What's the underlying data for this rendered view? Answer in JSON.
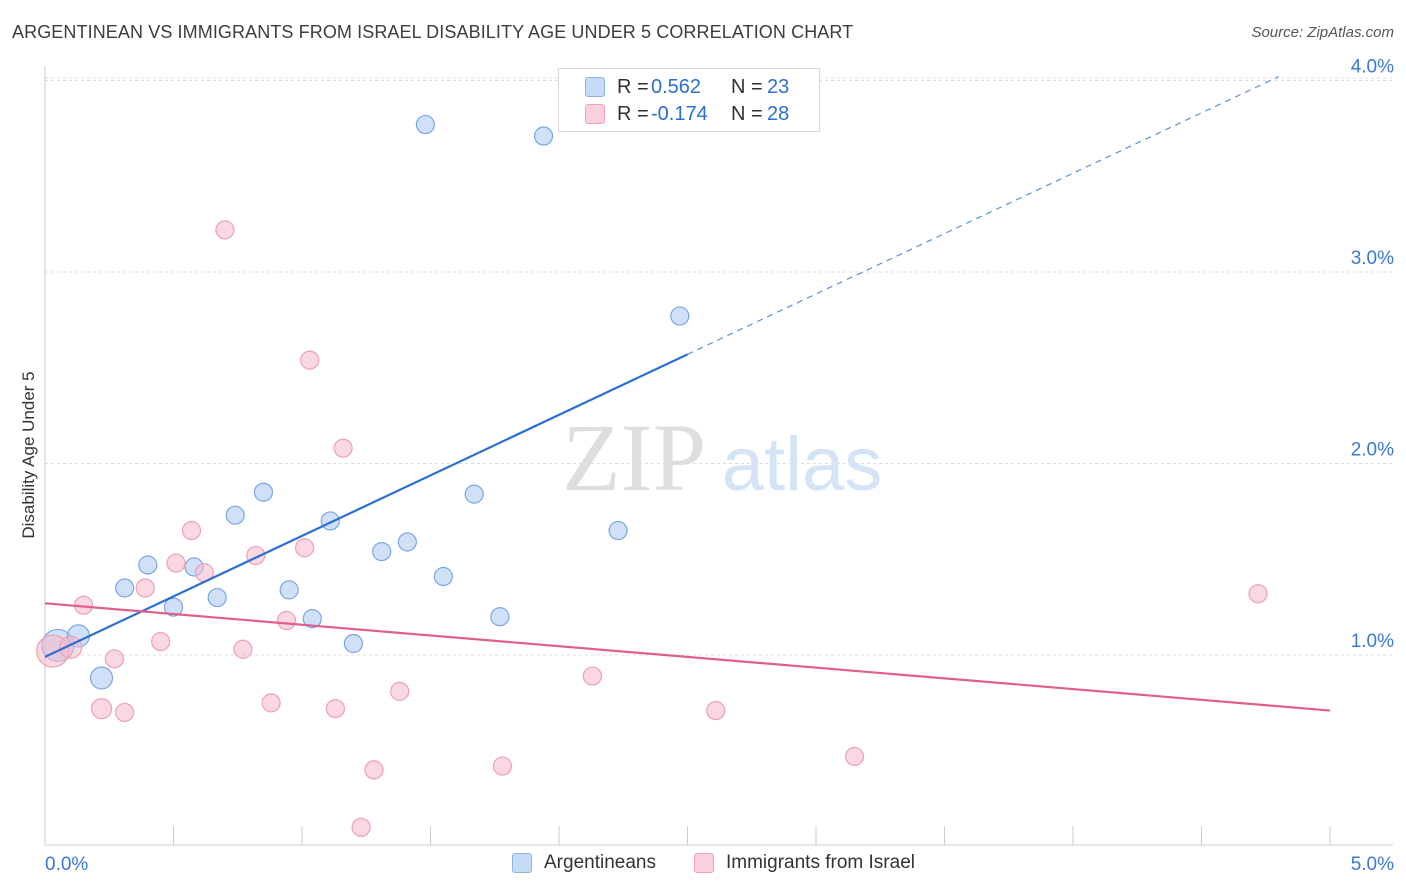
{
  "header": {
    "title": "ARGENTINEAN VS IMMIGRANTS FROM ISRAEL DISABILITY AGE UNDER 5 CORRELATION CHART",
    "source": "Source: ZipAtlas.com"
  },
  "watermark": {
    "zip": "ZIP",
    "atlas": "atlas"
  },
  "legend": {
    "rows": [
      {
        "r_label": "R = ",
        "r_value": "0.562",
        "n_label": "N = ",
        "n_value": "23",
        "color": "#aac8f0"
      },
      {
        "r_label": "R = ",
        "r_value": "-0.174",
        "n_label": "N = ",
        "n_value": "28",
        "color": "#f5b8c9"
      }
    ]
  },
  "bottom_legend": {
    "items": [
      {
        "label": "Argentineans",
        "color": "#aac8f0"
      },
      {
        "label": "Immigrants from Israel",
        "color": "#f5b8c9"
      }
    ]
  },
  "chart_data": {
    "type": "scatter",
    "title": "ARGENTINEAN VS IMMIGRANTS FROM ISRAEL DISABILITY AGE UNDER 5 CORRELATION CHART",
    "xlabel": "",
    "ylabel": "Disability Age Under 5",
    "xlim": [
      0,
      5.0
    ],
    "ylim": [
      0,
      4.0
    ],
    "x_tick_labels": [
      "0.0%",
      "5.0%"
    ],
    "y_tick_values": [
      1.0,
      2.0,
      3.0,
      4.0
    ],
    "y_tick_labels": [
      "1.0%",
      "2.0%",
      "3.0%",
      "4.0%"
    ],
    "grid": "horizontal dashed",
    "legend_position": "top-center",
    "series": [
      {
        "name": "Argentineans",
        "color": "#2c6fd1",
        "fill": "#aac8f0",
        "points": [
          {
            "x": 0.05,
            "y": 1.05,
            "s": 16
          },
          {
            "x": 0.13,
            "y": 1.1,
            "s": 11
          },
          {
            "x": 0.22,
            "y": 0.88,
            "s": 11
          },
          {
            "x": 0.31,
            "y": 1.35,
            "s": 9
          },
          {
            "x": 0.4,
            "y": 1.47,
            "s": 9
          },
          {
            "x": 0.5,
            "y": 1.25,
            "s": 9
          },
          {
            "x": 0.58,
            "y": 1.46,
            "s": 9
          },
          {
            "x": 0.67,
            "y": 1.3,
            "s": 9
          },
          {
            "x": 0.74,
            "y": 1.73,
            "s": 9
          },
          {
            "x": 0.85,
            "y": 1.85,
            "s": 9
          },
          {
            "x": 0.95,
            "y": 1.34,
            "s": 9
          },
          {
            "x": 1.04,
            "y": 1.19,
            "s": 9
          },
          {
            "x": 1.11,
            "y": 1.7,
            "s": 9
          },
          {
            "x": 1.2,
            "y": 1.06,
            "s": 9
          },
          {
            "x": 1.31,
            "y": 1.54,
            "s": 9
          },
          {
            "x": 1.41,
            "y": 1.59,
            "s": 9
          },
          {
            "x": 1.48,
            "y": 3.77,
            "s": 9
          },
          {
            "x": 1.55,
            "y": 1.41,
            "s": 9
          },
          {
            "x": 1.67,
            "y": 1.84,
            "s": 9
          },
          {
            "x": 1.77,
            "y": 1.2,
            "s": 9
          },
          {
            "x": 1.94,
            "y": 3.71,
            "s": 9
          },
          {
            "x": 2.23,
            "y": 1.65,
            "s": 9
          },
          {
            "x": 2.47,
            "y": 2.77,
            "s": 9
          }
        ],
        "trend": {
          "x0": 0.0,
          "y0": 0.99,
          "x1": 2.5,
          "y1": 2.57,
          "dash_to_x": 4.8,
          "dash_to_y": 4.02
        }
      },
      {
        "name": "Immigrants from Israel",
        "color": "#e0608a",
        "fill": "#f5b8c9",
        "points": [
          {
            "x": 0.03,
            "y": 1.02,
            "s": 16
          },
          {
            "x": 0.1,
            "y": 1.04,
            "s": 11
          },
          {
            "x": 0.15,
            "y": 1.26,
            "s": 9
          },
          {
            "x": 0.27,
            "y": 0.98,
            "s": 9
          },
          {
            "x": 0.22,
            "y": 0.72,
            "s": 10
          },
          {
            "x": 0.31,
            "y": 0.7,
            "s": 9
          },
          {
            "x": 0.39,
            "y": 1.35,
            "s": 9
          },
          {
            "x": 0.45,
            "y": 1.07,
            "s": 9
          },
          {
            "x": 0.51,
            "y": 1.48,
            "s": 9
          },
          {
            "x": 0.57,
            "y": 1.65,
            "s": 9
          },
          {
            "x": 0.62,
            "y": 1.43,
            "s": 9
          },
          {
            "x": 0.7,
            "y": 3.22,
            "s": 9
          },
          {
            "x": 0.77,
            "y": 1.03,
            "s": 9
          },
          {
            "x": 0.82,
            "y": 1.52,
            "s": 9
          },
          {
            "x": 0.88,
            "y": 0.75,
            "s": 9
          },
          {
            "x": 0.94,
            "y": 1.18,
            "s": 9
          },
          {
            "x": 1.01,
            "y": 1.56,
            "s": 9
          },
          {
            "x": 1.03,
            "y": 2.54,
            "s": 9
          },
          {
            "x": 1.13,
            "y": 0.72,
            "s": 9
          },
          {
            "x": 1.16,
            "y": 2.08,
            "s": 9
          },
          {
            "x": 1.23,
            "y": 0.1,
            "s": 9
          },
          {
            "x": 1.28,
            "y": 0.4,
            "s": 9
          },
          {
            "x": 1.38,
            "y": 0.81,
            "s": 9
          },
          {
            "x": 1.78,
            "y": 0.42,
            "s": 9
          },
          {
            "x": 2.13,
            "y": 0.89,
            "s": 9
          },
          {
            "x": 2.61,
            "y": 0.71,
            "s": 9
          },
          {
            "x": 3.15,
            "y": 0.47,
            "s": 9
          },
          {
            "x": 4.72,
            "y": 1.32,
            "s": 9
          }
        ],
        "trend": {
          "x0": 0.0,
          "y0": 1.27,
          "x1": 5.0,
          "y1": 0.71
        }
      }
    ]
  }
}
